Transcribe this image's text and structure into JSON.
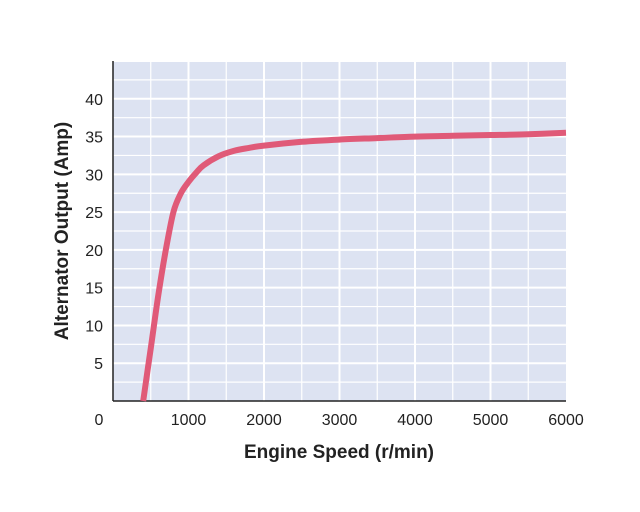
{
  "chart_data": {
    "type": "line",
    "title": "",
    "xlabel": "Engine Speed (r/min)",
    "ylabel": "Alternator Output (Amp)",
    "xlim": [
      0,
      6000
    ],
    "ylim": [
      0,
      45
    ],
    "x_ticks": [
      0,
      1000,
      2000,
      3000,
      4000,
      5000,
      6000
    ],
    "x_tick_labels": [
      "0",
      "1000",
      "2000",
      "3000",
      "4000",
      "5000",
      "6000"
    ],
    "y_ticks": [
      5,
      10,
      15,
      20,
      25,
      30,
      35,
      40
    ],
    "y_tick_labels": [
      "5",
      "10",
      "15",
      "20",
      "25",
      "30",
      "35",
      "40"
    ],
    "grid": true,
    "plot_background": "#dde3f2",
    "grid_color": "#ffffff",
    "series": [
      {
        "color": "#e05a78",
        "x": [
          400,
          500,
          600,
          700,
          800,
          900,
          1000,
          1100,
          1200,
          1400,
          1600,
          1800,
          2000,
          2500,
          3000,
          3500,
          4000,
          4500,
          5000,
          5500,
          6000
        ],
        "y": [
          0,
          7,
          14,
          20,
          25,
          27.5,
          29,
          30.2,
          31.2,
          32.4,
          33.1,
          33.5,
          33.8,
          34.3,
          34.6,
          34.8,
          35.0,
          35.1,
          35.2,
          35.3,
          35.5
        ]
      }
    ]
  }
}
